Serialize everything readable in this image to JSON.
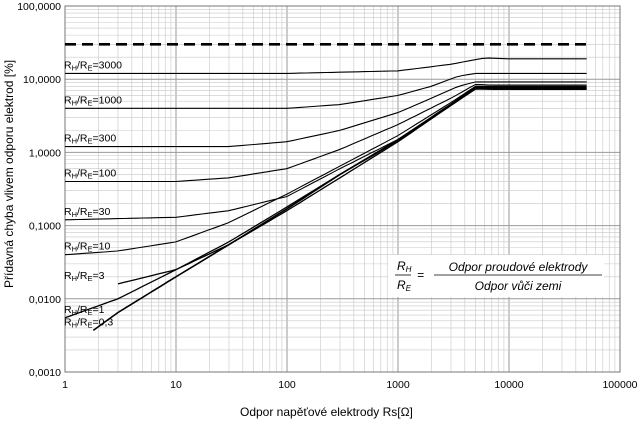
{
  "chart_data": {
    "type": "line",
    "x_scale": "log",
    "y_scale": "log",
    "xlim": [
      1,
      100000
    ],
    "ylim": [
      0.001,
      100
    ],
    "grid": true,
    "xlabel": "Odpor napěťové elektrody   Rs[Ω]",
    "ylabel": "Přídavná chyba vlivem odporu elektrod   [%]",
    "x_ticks": [
      "1",
      "10",
      "100",
      "1000",
      "10000",
      "100000"
    ],
    "y_ticks": [
      "0,0010",
      "0,0100",
      "0,1000",
      "1,0000",
      "10,0000",
      "100,0000"
    ],
    "formula": {
      "lhs_num": "RH",
      "lhs_den": "RE",
      "eq": "=",
      "rhs_num": "Odpor proudové elektrody",
      "rhs_den": "Odpor vůči zemi"
    },
    "limit_line": {
      "style": "dashed",
      "y": 30,
      "x": [
        1,
        50000
      ]
    },
    "series": [
      {
        "name": "RH/RE=3000",
        "label_main": "RH/RE=3000",
        "x": [
          1,
          100,
          1000,
          3000,
          4500,
          6000,
          10000,
          50000
        ],
        "y": [
          12,
          12,
          13,
          16,
          18,
          19.5,
          19,
          19
        ]
      },
      {
        "name": "RH/RE=1000",
        "label_main": "RH/RE=1000",
        "x": [
          1,
          100,
          300,
          1000,
          2000,
          3500,
          5000,
          10000,
          50000
        ],
        "y": [
          4,
          4,
          4.5,
          6,
          8,
          11,
          12,
          12,
          12
        ]
      },
      {
        "name": "RH/RE=300",
        "label_main": "RH/RE=300",
        "x": [
          1,
          30,
          100,
          300,
          1000,
          2000,
          3500,
          5000,
          7000,
          50000
        ],
        "y": [
          1.2,
          1.2,
          1.4,
          2,
          3.5,
          5.5,
          8,
          9.2,
          9.2,
          9.2
        ]
      },
      {
        "name": "RH/RE=100",
        "label_main": "RH/RE=100",
        "x": [
          1,
          10,
          30,
          100,
          300,
          1000,
          3000,
          5000,
          7000,
          50000
        ],
        "y": [
          0.4,
          0.4,
          0.45,
          0.6,
          1.1,
          2.4,
          5.5,
          8.5,
          8.3,
          8.3
        ]
      },
      {
        "name": "RH/RE=30",
        "label_main": "RH/RE=30",
        "x": [
          1,
          10,
          30,
          100,
          300,
          1000,
          3000,
          5000,
          7000,
          50000
        ],
        "y": [
          0.12,
          0.13,
          0.16,
          0.25,
          0.6,
          1.5,
          4.6,
          8,
          8,
          8
        ]
      },
      {
        "name": "RH/RE=10",
        "label_main": "RH/RE=10",
        "x": [
          1,
          3,
          10,
          30,
          100,
          300,
          1000,
          3000,
          5000,
          7000,
          50000
        ],
        "y": [
          0.04,
          0.045,
          0.06,
          0.11,
          0.27,
          0.65,
          1.7,
          4.8,
          8,
          7.8,
          7.8
        ]
      },
      {
        "name": "RH/RE=3",
        "label_main": "RH/RE=3",
        "x": [
          3,
          10,
          30,
          100,
          300,
          1000,
          3000,
          5000,
          7000,
          50000
        ],
        "y": [
          0.016,
          0.025,
          0.055,
          0.16,
          0.45,
          1.4,
          4.4,
          7.8,
          7.6,
          7.6
        ]
      },
      {
        "name": "RH/RE=1",
        "label_main": "RH/RE=1",
        "x": [
          1,
          3,
          10,
          30,
          100,
          300,
          1000,
          3000,
          5000,
          7000,
          50000
        ],
        "y": [
          0.0055,
          0.01,
          0.025,
          0.06,
          0.18,
          0.5,
          1.5,
          4.5,
          7.6,
          7.5,
          7.5
        ]
      },
      {
        "name": "RH/RE=0,3",
        "label_main": "RH/RE=0,3",
        "x": [
          1.8,
          3,
          10,
          30,
          100,
          300,
          1000,
          3000,
          5000,
          7000,
          50000
        ],
        "y": [
          0.0037,
          0.0065,
          0.02,
          0.055,
          0.17,
          0.5,
          1.45,
          4.4,
          7.4,
          7.3,
          7.3
        ]
      }
    ],
    "series_labels": [
      {
        "main": "R",
        "sub1": "H",
        "mid": "/R",
        "sub2": "E",
        "tail": "=3000"
      },
      {
        "main": "R",
        "sub1": "H",
        "mid": "/R",
        "sub2": "E",
        "tail": "=1000"
      },
      {
        "main": "R",
        "sub1": "H",
        "mid": "/R",
        "sub2": "E",
        "tail": "=300"
      },
      {
        "main": "R",
        "sub1": "H",
        "mid": "/R",
        "sub2": "E",
        "tail": "=100"
      },
      {
        "main": "R",
        "sub1": "H",
        "mid": "/R",
        "sub2": "E",
        "tail": "=30"
      },
      {
        "main": "R",
        "sub1": "H",
        "mid": "/R",
        "sub2": "E",
        "tail": "=10"
      },
      {
        "main": "R",
        "sub1": "H",
        "mid": "/R",
        "sub2": "E",
        "tail": "=3"
      },
      {
        "main": "R",
        "sub1": "H",
        "mid": "/R",
        "sub2": "E",
        "tail": "=1"
      },
      {
        "main": "R",
        "sub1": "H",
        "mid": "/R",
        "sub2": "E",
        "tail": "=0,3"
      }
    ],
    "colors": {
      "line": "#000000",
      "grid": "#c8c8c8",
      "grid_major": "#9a9a9a"
    }
  }
}
